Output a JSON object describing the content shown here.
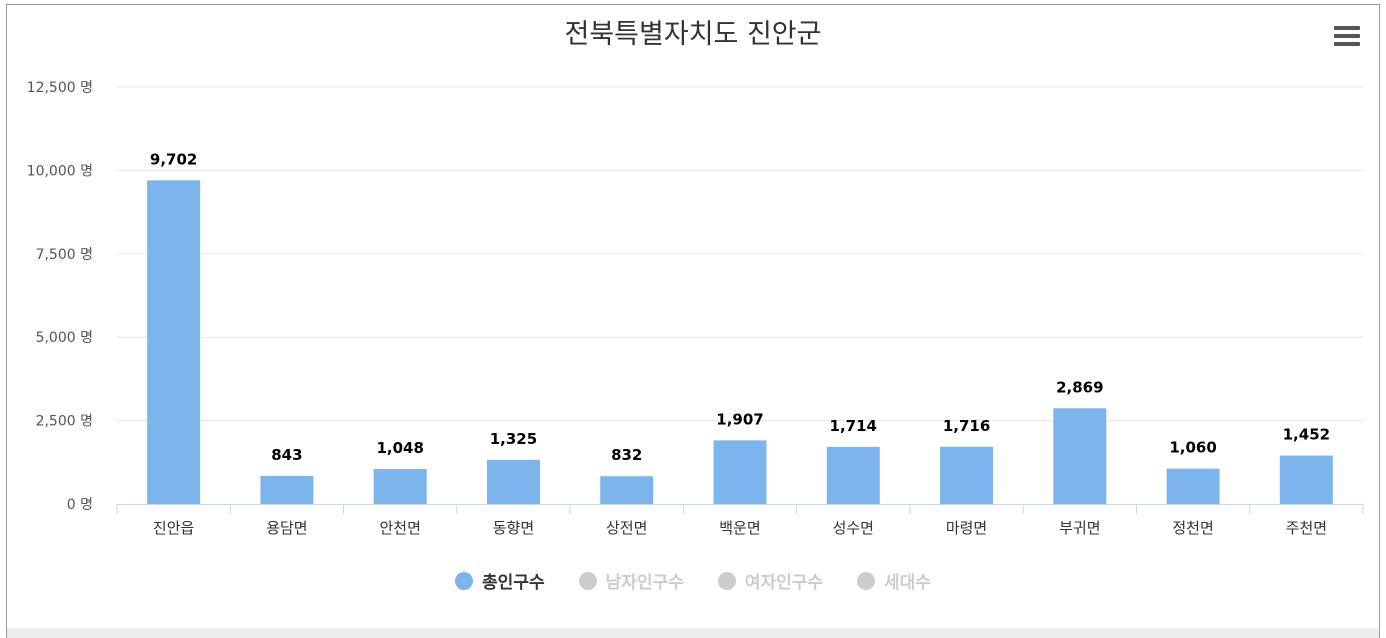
{
  "title": "전북특별자치도 진안군",
  "menu_icon": "hamburger-menu-icon",
  "colors": {
    "bar": "#7cb5ec",
    "grid": "#e6e6e6",
    "axis": "#ccd6eb",
    "inactive": "#cccccc",
    "text": "#333333"
  },
  "legend": [
    {
      "label": "총인구수",
      "active": true
    },
    {
      "label": "남자인구수",
      "active": false
    },
    {
      "label": "여자인구수",
      "active": false
    },
    {
      "label": "세대수",
      "active": false
    }
  ],
  "chart_data": {
    "type": "bar",
    "title": "전북특별자치도 진안군",
    "categories": [
      "진안읍",
      "용담면",
      "안천면",
      "동향면",
      "상전면",
      "백운면",
      "성수면",
      "마령면",
      "부귀면",
      "정천면",
      "주천면"
    ],
    "series": [
      {
        "name": "총인구수",
        "values": [
          9702,
          843,
          1048,
          1325,
          832,
          1907,
          1714,
          1716,
          2869,
          1060,
          1452
        ],
        "visible": true
      }
    ],
    "value_labels": [
      "9,702",
      "843",
      "1,048",
      "1,325",
      "832",
      "1,907",
      "1,714",
      "1,716",
      "2,869",
      "1,060",
      "1,452"
    ],
    "y_ticks": [
      0,
      2500,
      5000,
      7500,
      10000,
      12500
    ],
    "y_tick_labels": [
      "0 명",
      "2,500 명",
      "5,000 명",
      "7,500 명",
      "10,000 명",
      "12,500 명"
    ],
    "ylim": [
      0,
      12500
    ],
    "grid": true,
    "legend_position": "bottom"
  }
}
